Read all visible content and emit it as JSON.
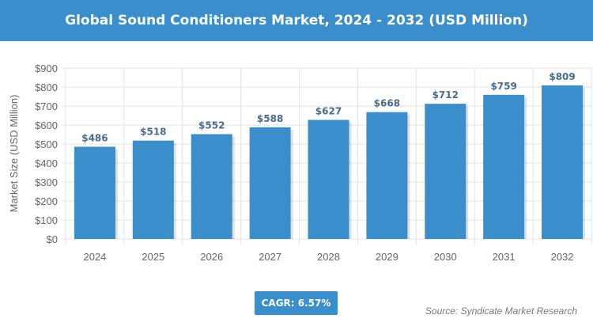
{
  "title": "Global Sound Conditioners Market, 2024 - 2032 (USD Million)",
  "cagr": "CAGR: 6.57%",
  "source": "Source: Syndicate Market Research",
  "colors": {
    "bar": "#3a8fcb",
    "header": "#3a8fcb",
    "label": "#4a6b8a"
  },
  "chart_data": {
    "type": "bar",
    "title": "Global Sound Conditioners Market, 2024 - 2032 (USD Million)",
    "ylabel": "Market Size (USD Million)",
    "xlabel": "",
    "categories": [
      "2024",
      "2025",
      "2026",
      "2027",
      "2028",
      "2029",
      "2030",
      "2031",
      "2032"
    ],
    "values": [
      486,
      518,
      552,
      588,
      627,
      668,
      712,
      759,
      809
    ],
    "data_labels": [
      "$486",
      "$518",
      "$552",
      "$588",
      "$627",
      "$668",
      "$712",
      "$759",
      "$809"
    ],
    "ylim": [
      0,
      900
    ],
    "yticks": [
      "$0",
      "$100",
      "$200",
      "$300",
      "$400",
      "$500",
      "$600",
      "$700",
      "$800",
      "$900"
    ],
    "grid": true
  }
}
